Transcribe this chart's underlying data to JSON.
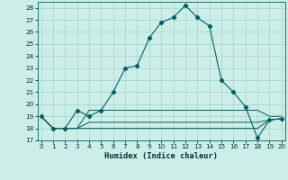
{
  "xlabel": "Humidex (Indice chaleur)",
  "background_color": "#cceee8",
  "grid_color": "#aad8d0",
  "line_color": "#006060",
  "x": [
    0,
    1,
    2,
    3,
    4,
    5,
    6,
    7,
    8,
    9,
    10,
    11,
    12,
    13,
    14,
    15,
    16,
    17,
    18,
    19,
    20
  ],
  "series_main": [
    19,
    18,
    18,
    19.5,
    19,
    19.5,
    21,
    23,
    23.2,
    25.5,
    26.8,
    27.2,
    28.2,
    27.2,
    26.5,
    22,
    21,
    19.8,
    17.2,
    18.7,
    18.8
  ],
  "series_flat1": [
    19,
    18,
    18,
    18,
    18,
    18,
    18,
    18,
    18,
    18,
    18,
    18,
    18,
    18,
    18,
    18,
    18,
    18,
    18,
    18.7,
    18.8
  ],
  "series_flat2": [
    19,
    18,
    18,
    18,
    19.5,
    19.5,
    19.5,
    19.5,
    19.5,
    19.5,
    19.5,
    19.5,
    19.5,
    19.5,
    19.5,
    19.5,
    19.5,
    19.5,
    19.5,
    19,
    19
  ],
  "series_flat3": [
    19,
    18,
    18,
    18,
    18.5,
    18.5,
    18.5,
    18.5,
    18.5,
    18.5,
    18.5,
    18.5,
    18.5,
    18.5,
    18.5,
    18.5,
    18.5,
    18.5,
    18.5,
    18.7,
    18.8
  ],
  "ylim": [
    17,
    28.5
  ],
  "xlim": [
    -0.3,
    20.3
  ],
  "yticks": [
    17,
    18,
    19,
    20,
    21,
    22,
    23,
    24,
    25,
    26,
    27,
    28
  ],
  "xticks": [
    0,
    1,
    2,
    3,
    4,
    5,
    6,
    7,
    8,
    9,
    10,
    11,
    12,
    13,
    14,
    15,
    16,
    17,
    18,
    19,
    20
  ],
  "tick_fontsize": 5.2,
  "xlabel_fontsize": 6.2
}
